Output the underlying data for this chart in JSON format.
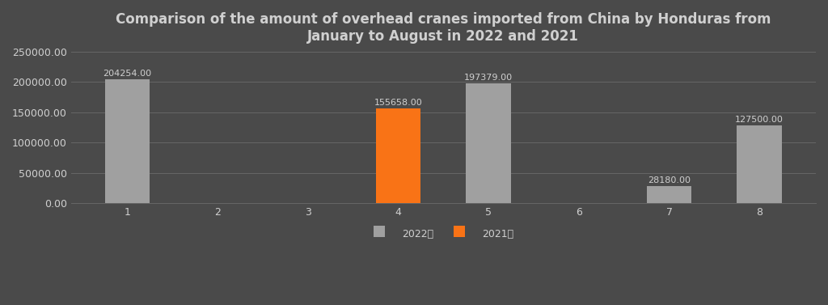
{
  "title": "Comparison of the amount of overhead cranes imported from China by Honduras from\nJanuary to August in 2022 and 2021",
  "months": [
    1,
    2,
    3,
    4,
    5,
    6,
    7,
    8
  ],
  "data_2021": [
    0,
    0,
    0,
    155658.0,
    0,
    0,
    0,
    0
  ],
  "data_2022": [
    204254.0,
    0,
    0,
    0,
    197379.0,
    0,
    28180.0,
    127500.0
  ],
  "color_2021": "#F97316",
  "color_2022": "#A0A0A0",
  "background_color": "#4a4a4a",
  "text_color": "#D0D0D0",
  "label_2021": "2021年",
  "label_2022": "2022年",
  "ylim": [
    0,
    250000
  ],
  "yticks": [
    0,
    50000,
    100000,
    150000,
    200000,
    250000
  ],
  "ytick_labels": [
    "0.00",
    "50000.00",
    "100000.00",
    "150000.00",
    "200000.00",
    "250000.00"
  ],
  "bar_width": 0.5,
  "title_fontsize": 12,
  "tick_fontsize": 9,
  "annotation_fontsize": 8,
  "legend_fontsize": 9,
  "grid_color": "#666666"
}
